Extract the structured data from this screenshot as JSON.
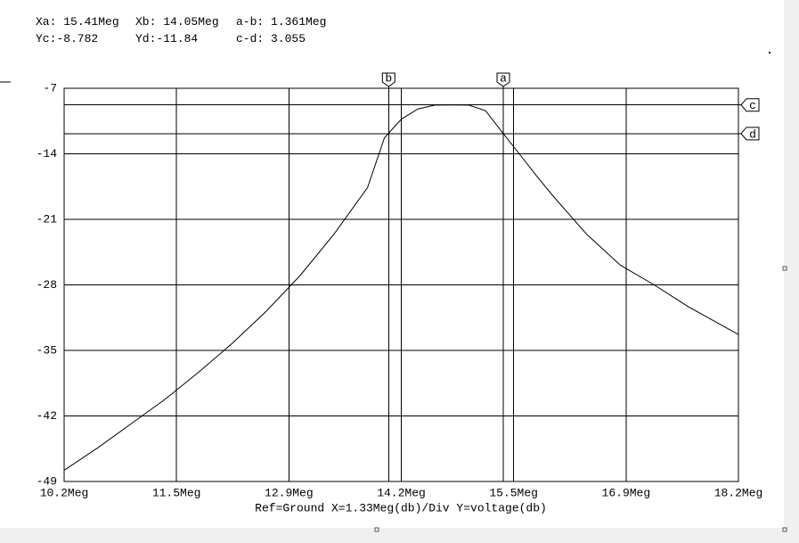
{
  "chart_data": {
    "type": "line",
    "x_label": "Ref=Ground  X=1.33Meg(db)/Div Y=voltage(db)",
    "readouts": [
      {
        "cursor": "a",
        "axis": "x",
        "label": "Xa:",
        "value": 15.41,
        "value_label": "15.41Meg"
      },
      {
        "cursor": "b",
        "axis": "x",
        "label": "Xb:",
        "value": 14.05,
        "value_label": "14.05Meg"
      },
      {
        "label": "a-b:",
        "value": 1.361,
        "value_label": "1.361Meg"
      },
      {
        "cursor": "c",
        "axis": "y",
        "label": "Yc:",
        "value": -8.782,
        "value_label": "-8.782"
      },
      {
        "cursor": "d",
        "axis": "y",
        "label": "Yd:",
        "value": -11.84,
        "value_label": "-11.84"
      },
      {
        "label": "c-d:",
        "value": 3.055,
        "value_label": "3.055"
      }
    ],
    "x": [
      10.2,
      10.6,
      11.0,
      11.4,
      11.8,
      12.2,
      12.6,
      13.0,
      13.4,
      13.8,
      14.0,
      14.2,
      14.4,
      14.6,
      14.8,
      15.0,
      15.2,
      15.41,
      15.6,
      15.8,
      16.0,
      16.4,
      16.8,
      17.2,
      17.6,
      18.0,
      18.2
    ],
    "series": [
      {
        "color": "#000000",
        "values": [
          -47.8,
          -45.4,
          -42.8,
          -40.2,
          -37.3,
          -34.2,
          -30.8,
          -27.0,
          -22.6,
          -17.6,
          -12.3,
          -10.3,
          -9.2,
          -8.8,
          -8.78,
          -8.8,
          -9.4,
          -11.84,
          -14.0,
          -16.3,
          -18.5,
          -22.6,
          -25.9,
          -28.0,
          -30.3,
          -32.3,
          -33.3
        ]
      }
    ],
    "xlim": [
      10.2,
      18.2
    ],
    "ylim": [
      -49,
      -7
    ],
    "xticks": [
      {
        "value": 10.2,
        "label": "10.2Meg"
      },
      {
        "value": 11.533,
        "label": "11.5Meg"
      },
      {
        "value": 12.867,
        "label": "12.9Meg"
      },
      {
        "value": 14.2,
        "label": "14.2Meg"
      },
      {
        "value": 15.533,
        "label": "15.5Meg"
      },
      {
        "value": 16.867,
        "label": "16.9Meg"
      },
      {
        "value": 18.2,
        "label": "18.2Meg"
      }
    ],
    "yticks": [
      -49,
      -42,
      -35,
      -28,
      -21,
      -14,
      -7
    ],
    "grid": true
  }
}
